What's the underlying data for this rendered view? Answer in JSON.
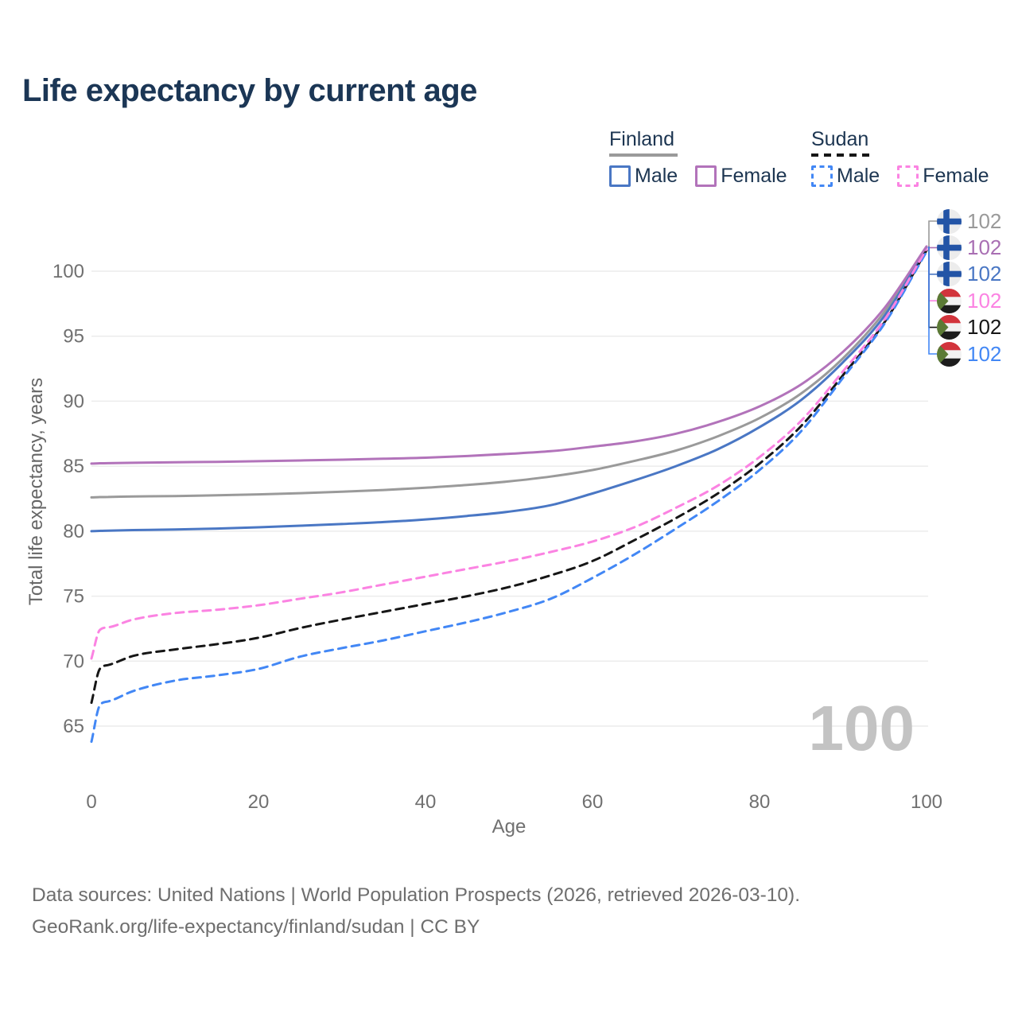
{
  "title": "Life expectancy by current age",
  "watermark": "100",
  "footer": {
    "line1": "Data sources: United Nations | World Population Prospects (2026, retrieved 2026-03-10).",
    "line2": "GeoRank.org/life-expectancy/finland/sudan | CC BY"
  },
  "legend": {
    "groups": [
      {
        "label": "Finland",
        "underline_color": "#9a9a9a",
        "underline_style": "solid",
        "items": [
          {
            "label": "Male",
            "color": "#4a77c4",
            "dashed": false
          },
          {
            "label": "Female",
            "color": "#b273ba",
            "dashed": false
          }
        ]
      },
      {
        "label": "Sudan",
        "underline_color": "#161616",
        "underline_style": "dashed",
        "items": [
          {
            "label": "Male",
            "color": "#4287f5",
            "dashed": true
          },
          {
            "label": "Female",
            "color": "#fb83e2",
            "dashed": true
          }
        ]
      }
    ]
  },
  "chart_data": {
    "type": "line",
    "title": "Life expectancy by current age",
    "x_label": "Age",
    "y_label": "Total life expectancy, years",
    "x_ticks": [
      0,
      20,
      40,
      60,
      80,
      100
    ],
    "y_ticks": [
      65,
      70,
      75,
      80,
      85,
      90,
      95,
      100
    ],
    "x_range": [
      0,
      100
    ],
    "y_range": [
      63,
      103
    ],
    "grid": "horizontal-only",
    "legend_position": "top-right",
    "ages": [
      0,
      1,
      2,
      5,
      10,
      15,
      20,
      25,
      30,
      35,
      40,
      45,
      50,
      55,
      60,
      65,
      70,
      75,
      80,
      85,
      90,
      95,
      100
    ],
    "series": [
      {
        "name": "Finland (both sexes)",
        "country": "Finland",
        "flag": "finland",
        "color": "#9a9a9a",
        "label_color": "#999999",
        "dashed": false,
        "end_label": "102",
        "values": [
          82.6,
          82.62,
          82.63,
          82.67,
          82.7,
          82.76,
          82.83,
          82.92,
          83.03,
          83.17,
          83.34,
          83.55,
          83.83,
          84.2,
          84.7,
          85.4,
          86.2,
          87.3,
          88.7,
          90.6,
          93.3,
          96.9,
          101.8
        ]
      },
      {
        "name": "Finland Female",
        "country": "Finland",
        "flag": "finland",
        "color": "#b273ba",
        "label_color": "#a96fb3",
        "dashed": false,
        "end_label": "102",
        "values": [
          85.2,
          85.22,
          85.23,
          85.26,
          85.3,
          85.33,
          85.38,
          85.44,
          85.5,
          85.57,
          85.65,
          85.78,
          85.95,
          86.15,
          86.5,
          86.9,
          87.5,
          88.4,
          89.6,
          91.3,
          93.8,
          97.2,
          101.9
        ]
      },
      {
        "name": "Finland Male",
        "country": "Finland",
        "flag": "finland",
        "color": "#4a77c4",
        "label_color": "#4a77c4",
        "dashed": false,
        "end_label": "102",
        "values": [
          80.0,
          80.02,
          80.04,
          80.08,
          80.13,
          80.2,
          80.3,
          80.42,
          80.55,
          80.7,
          80.9,
          81.17,
          81.5,
          82.0,
          82.9,
          83.9,
          85.0,
          86.3,
          88.0,
          90.1,
          93.0,
          96.6,
          101.8
        ]
      },
      {
        "name": "Sudan Female",
        "country": "Sudan",
        "flag": "sudan",
        "color": "#fb83e2",
        "label_color": "#fb83e2",
        "dashed": true,
        "end_label": "102",
        "values": [
          70.2,
          72.4,
          72.6,
          73.2,
          73.7,
          73.95,
          74.3,
          74.8,
          75.3,
          75.9,
          76.5,
          77.1,
          77.7,
          78.4,
          79.2,
          80.3,
          81.8,
          83.5,
          85.7,
          88.5,
          92.3,
          96.3,
          101.7
        ]
      },
      {
        "name": "Sudan (both sexes)",
        "country": "Sudan",
        "flag": "sudan",
        "color": "#161616",
        "label_color": "#161616",
        "dashed": true,
        "end_label": "102",
        "values": [
          66.8,
          69.4,
          69.7,
          70.4,
          70.9,
          71.3,
          71.8,
          72.55,
          73.2,
          73.8,
          74.4,
          75.0,
          75.7,
          76.6,
          77.7,
          79.3,
          81.0,
          82.9,
          85.2,
          88.1,
          92.0,
          96.1,
          101.6
        ]
      },
      {
        "name": "Sudan Male",
        "country": "Sudan",
        "flag": "sudan",
        "color": "#4287f5",
        "label_color": "#4287f5",
        "dashed": true,
        "end_label": "102",
        "values": [
          63.8,
          66.6,
          66.9,
          67.7,
          68.5,
          68.9,
          69.4,
          70.35,
          71.0,
          71.6,
          72.3,
          73.0,
          73.8,
          74.8,
          76.4,
          78.2,
          80.2,
          82.3,
          84.7,
          87.7,
          91.8,
          96.0,
          101.5
        ]
      }
    ]
  }
}
